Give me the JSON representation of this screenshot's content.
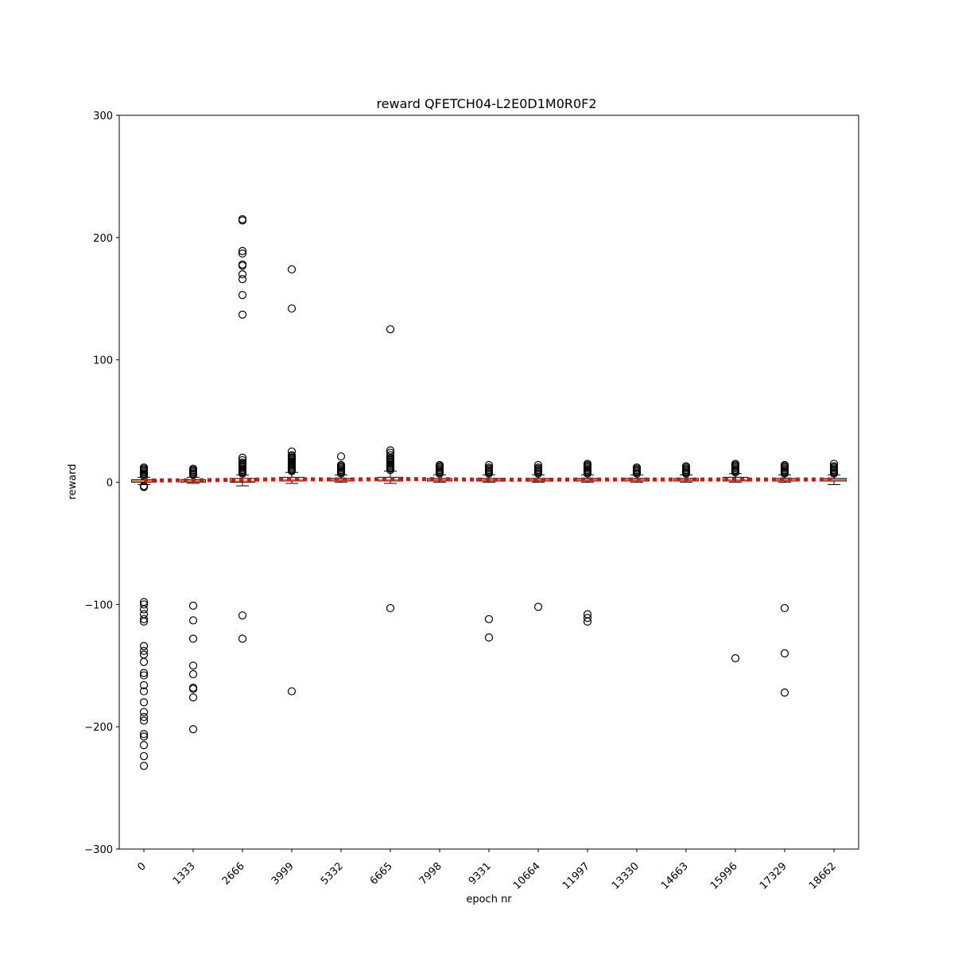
{
  "chart_data": {
    "type": "box",
    "title": "reward QFETCH04-L2E0D1M0R0F2",
    "xlabel": "epoch nr",
    "ylabel": "reward",
    "ylim": [
      -300,
      300
    ],
    "yticks": [
      -300,
      -200,
      -100,
      0,
      100,
      200,
      300
    ],
    "ytick_labels": [
      "−300",
      "−200",
      "−100",
      "0",
      "100",
      "200",
      "300"
    ],
    "categories": [
      "0",
      "1333",
      "2666",
      "3999",
      "5332",
      "6665",
      "7998",
      "9331",
      "10664",
      "11997",
      "13330",
      "14663",
      "15996",
      "17329",
      "18662"
    ],
    "mean_line": {
      "style": "dotted",
      "color": "#ff0000",
      "values": [
        1.5,
        1.5,
        2,
        2.5,
        2.2,
        2.5,
        2.5,
        2,
        2,
        2.2,
        2.2,
        2.2,
        2.2,
        2.2,
        2.2
      ]
    },
    "boxes": [
      {
        "whislo": -2,
        "q1": 0,
        "med": 1,
        "q3": 2,
        "whishi": 4,
        "fliers": [
          5,
          6,
          7,
          8,
          9,
          10,
          11,
          12,
          -3,
          -4,
          -98,
          -100,
          -104,
          -108,
          -112,
          -114,
          -134,
          -138,
          -141,
          -147,
          -156,
          -158,
          -166,
          -171,
          -180,
          -188,
          -192,
          -195,
          -206,
          -208,
          -215,
          -224,
          -232
        ]
      },
      {
        "whislo": -1,
        "q1": 0,
        "med": 1,
        "q3": 2,
        "whishi": 4,
        "fliers": [
          6,
          7,
          8,
          9,
          10,
          11,
          -101,
          -113,
          -128,
          -150,
          -157,
          -168,
          -169,
          -176,
          -202
        ]
      },
      {
        "whislo": -3,
        "q1": 0,
        "med": 1,
        "q3": 3,
        "whishi": 6,
        "fliers": [
          7,
          8,
          9,
          10,
          11,
          12,
          13,
          14,
          15,
          16,
          18,
          20,
          215,
          214,
          189,
          187,
          178,
          177,
          170,
          166,
          153,
          137,
          -109,
          -128
        ]
      },
      {
        "whislo": -1,
        "q1": 1,
        "med": 2,
        "q3": 4,
        "whishi": 8,
        "fliers": [
          9,
          10,
          11,
          12,
          13,
          14,
          15,
          16,
          17,
          18,
          19,
          20,
          21,
          22,
          25,
          174,
          142,
          -171
        ]
      },
      {
        "whislo": 0,
        "q1": 1,
        "med": 2,
        "q3": 3,
        "whishi": 6,
        "fliers": [
          7,
          8,
          9,
          10,
          11,
          12,
          13,
          14,
          21
        ]
      },
      {
        "whislo": -1,
        "q1": 1,
        "med": 2,
        "q3": 4,
        "whishi": 9,
        "fliers": [
          10,
          11,
          12,
          13,
          14,
          15,
          16,
          17,
          18,
          19,
          20,
          22,
          24,
          26,
          125,
          -103
        ]
      },
      {
        "whislo": 0,
        "q1": 1,
        "med": 2,
        "q3": 3,
        "whishi": 6,
        "fliers": [
          7,
          8,
          9,
          10,
          11,
          12,
          13,
          14
        ]
      },
      {
        "whislo": 0,
        "q1": 1,
        "med": 2,
        "q3": 3,
        "whishi": 6,
        "fliers": [
          7,
          8,
          9,
          10,
          11,
          12,
          14,
          -112,
          -127
        ]
      },
      {
        "whislo": 0,
        "q1": 1,
        "med": 2,
        "q3": 3,
        "whishi": 6,
        "fliers": [
          7,
          8,
          9,
          10,
          11,
          12,
          14,
          -102
        ]
      },
      {
        "whislo": 0,
        "q1": 1,
        "med": 2,
        "q3": 3,
        "whishi": 6,
        "fliers": [
          7,
          8,
          9,
          10,
          11,
          12,
          13,
          14,
          15,
          -108,
          -111,
          -114
        ]
      },
      {
        "whislo": 0,
        "q1": 1,
        "med": 2,
        "q3": 3,
        "whishi": 6,
        "fliers": [
          7,
          8,
          9,
          10,
          11,
          12
        ]
      },
      {
        "whislo": 0,
        "q1": 1,
        "med": 2,
        "q3": 3,
        "whishi": 6,
        "fliers": [
          7,
          8,
          9,
          10,
          11,
          12,
          13
        ]
      },
      {
        "whislo": 0,
        "q1": 1,
        "med": 2,
        "q3": 4,
        "whishi": 7,
        "fliers": [
          8,
          9,
          10,
          11,
          12,
          13,
          14,
          15,
          -144
        ]
      },
      {
        "whislo": 0,
        "q1": 1,
        "med": 2,
        "q3": 3,
        "whishi": 6,
        "fliers": [
          7,
          8,
          9,
          10,
          11,
          12,
          13,
          14,
          -103,
          -140,
          -172
        ]
      },
      {
        "whislo": -2,
        "q1": 1,
        "med": 2,
        "q3": 3,
        "whishi": 6,
        "fliers": [
          7,
          8,
          9,
          10,
          11,
          12,
          13,
          15
        ]
      }
    ],
    "box_color": "#000000",
    "median_color": "#ff7f0e",
    "flier_color": "#000000",
    "grid": false,
    "legend": "none"
  }
}
